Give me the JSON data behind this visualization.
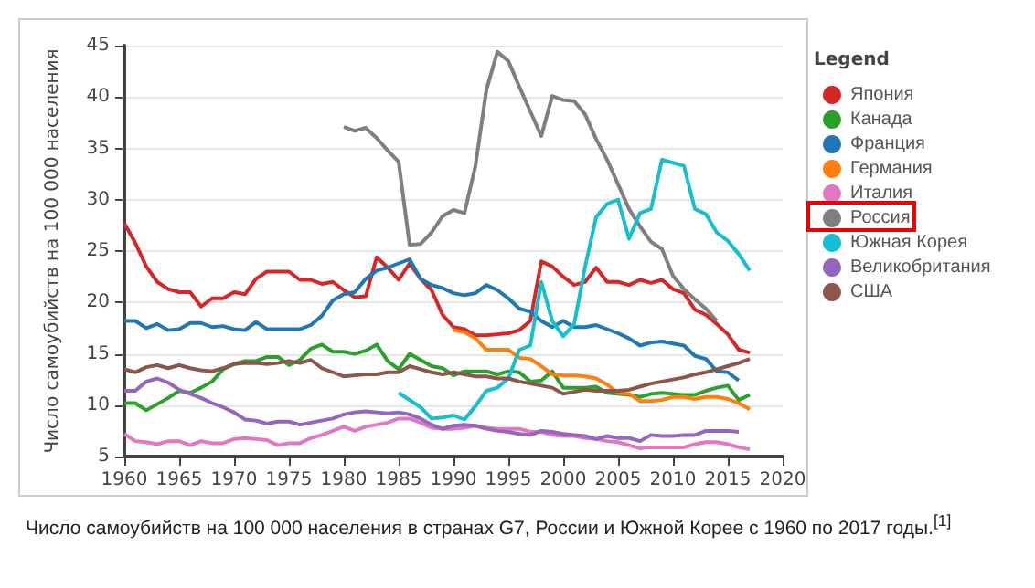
{
  "chart_data": {
    "type": "line",
    "ylabel": "Число самоубийств на 100 000 населения",
    "legend_title": "Legend",
    "legend": "right",
    "grid": "y",
    "marker": "none",
    "line_style": "solid",
    "xlim": [
      1960,
      2020
    ],
    "xticks": [
      1960,
      1965,
      1970,
      1975,
      1980,
      1985,
      1990,
      1995,
      2000,
      2005,
      2010,
      2015,
      2020
    ],
    "ylim": [
      5,
      45
    ],
    "yticks": [
      5,
      10,
      15,
      20,
      25,
      30,
      35,
      40,
      45
    ],
    "annotations": [
      "Число самоубийств на 100 000 населения в странах G7, России и Южной Корее с 1960 по 2017 годы.$^{[1]}$"
    ],
    "x": [
      1960,
      1961,
      1962,
      1963,
      1964,
      1965,
      1966,
      1967,
      1968,
      1969,
      1970,
      1971,
      1972,
      1973,
      1974,
      1975,
      1976,
      1977,
      1978,
      1979,
      1980,
      1981,
      1982,
      1983,
      1984,
      1985,
      1986,
      1987,
      1988,
      1989,
      1990,
      1991,
      1992,
      1993,
      1994,
      1995,
      1996,
      1997,
      1998,
      1999,
      2000,
      2001,
      2002,
      2003,
      2004,
      2005,
      2006,
      2007,
      2008,
      2009,
      2010,
      2011,
      2012,
      2013,
      2014,
      2015,
      2016,
      2017
    ],
    "series": [
      {
        "name": "Япония",
        "color": "#d62728",
        "values": [
          27.7,
          25.8,
          23.5,
          22.0,
          21.3,
          21.0,
          21.0,
          19.6,
          20.4,
          20.4,
          21.0,
          20.8,
          22.3,
          23.0,
          23.0,
          23.0,
          22.2,
          22.2,
          21.8,
          22.0,
          21.2,
          20.5,
          20.6,
          24.4,
          23.4,
          22.2,
          23.8,
          22.3,
          21.2,
          18.8,
          17.6,
          17.4,
          16.8,
          16.8,
          16.9,
          17.0,
          17.3,
          18.2,
          24.0,
          23.5,
          22.5,
          21.7,
          22.0,
          23.4,
          22.0,
          22.0,
          21.7,
          22.2,
          21.9,
          22.2,
          21.3,
          20.9,
          19.3,
          18.8,
          17.9,
          16.9,
          15.4,
          15.1
        ]
      },
      {
        "name": "Канада",
        "color": "#2ca02c",
        "values": [
          10.2,
          10.2,
          9.5,
          10.1,
          10.7,
          11.4,
          11.2,
          11.7,
          12.3,
          13.5,
          14.0,
          14.3,
          14.3,
          14.7,
          14.7,
          13.9,
          14.4,
          15.5,
          15.9,
          15.2,
          15.2,
          15.0,
          15.3,
          15.9,
          14.3,
          13.5,
          15.0,
          14.4,
          13.8,
          13.6,
          12.9,
          13.3,
          13.3,
          13.3,
          13.0,
          13.3,
          13.2,
          12.3,
          12.4,
          13.3,
          11.7,
          11.7,
          11.7,
          11.8,
          11.2,
          11.1,
          11.0,
          10.8,
          11.1,
          11.2,
          11.1,
          11.0,
          11.0,
          11.4,
          11.7,
          11.9,
          10.5,
          11.0
        ]
      },
      {
        "name": "Франция",
        "color": "#1f77b4",
        "values": [
          18.2,
          18.2,
          17.5,
          17.9,
          17.3,
          17.4,
          18.0,
          18.0,
          17.6,
          17.7,
          17.4,
          17.3,
          18.1,
          17.4,
          17.4,
          17.4,
          17.4,
          17.8,
          18.7,
          20.2,
          20.8,
          21.0,
          22.3,
          23.1,
          23.4,
          23.8,
          24.2,
          22.3,
          21.7,
          21.4,
          20.9,
          20.7,
          20.9,
          21.7,
          21.2,
          20.4,
          19.4,
          19.1,
          18.2,
          17.6,
          18.2,
          17.6,
          17.6,
          17.8,
          17.4,
          17.0,
          16.5,
          15.8,
          16.1,
          16.2,
          16.0,
          15.8,
          14.8,
          14.5,
          13.3,
          13.2,
          12.4,
          null
        ]
      },
      {
        "name": "Германия",
        "color": "#ff7f0e",
        "values": [
          null,
          null,
          null,
          null,
          null,
          null,
          null,
          null,
          null,
          null,
          null,
          null,
          null,
          null,
          null,
          null,
          null,
          null,
          null,
          null,
          null,
          null,
          null,
          null,
          null,
          null,
          null,
          null,
          null,
          null,
          17.3,
          17.1,
          16.5,
          15.4,
          15.4,
          15.4,
          14.6,
          14.5,
          13.8,
          13.0,
          12.9,
          12.9,
          12.8,
          12.6,
          12.0,
          11.2,
          11.1,
          10.4,
          10.4,
          10.5,
          10.8,
          10.8,
          10.6,
          10.8,
          10.8,
          10.6,
          10.2,
          9.6
        ]
      },
      {
        "name": "Италия",
        "color": "#e377c2",
        "values": [
          7.2,
          6.5,
          6.4,
          6.2,
          6.5,
          6.5,
          6.1,
          6.5,
          6.3,
          6.3,
          6.7,
          6.8,
          6.7,
          6.6,
          6.1,
          6.3,
          6.3,
          6.8,
          7.1,
          7.5,
          7.9,
          7.5,
          7.9,
          8.1,
          8.3,
          8.7,
          8.7,
          8.3,
          7.8,
          7.7,
          7.7,
          7.8,
          8.0,
          7.8,
          7.7,
          7.7,
          7.7,
          7.4,
          7.4,
          7.1,
          7.0,
          7.0,
          6.8,
          6.7,
          6.5,
          6.4,
          6.1,
          5.8,
          5.9,
          5.9,
          5.9,
          5.9,
          6.2,
          6.4,
          6.4,
          6.2,
          5.9,
          5.7
        ]
      },
      {
        "name": "Россия",
        "color": "#7f7f7f",
        "values": [
          null,
          null,
          null,
          null,
          null,
          null,
          null,
          null,
          null,
          null,
          null,
          null,
          null,
          null,
          null,
          null,
          null,
          null,
          null,
          null,
          37.1,
          36.7,
          37.0,
          36.0,
          34.8,
          33.7,
          25.6,
          25.7,
          26.8,
          28.4,
          29.0,
          28.7,
          33.3,
          40.7,
          44.4,
          43.5,
          41.0,
          38.6,
          36.2,
          40.1,
          39.7,
          39.6,
          38.3,
          35.9,
          33.9,
          31.5,
          29.1,
          27.4,
          25.9,
          25.2,
          22.6,
          21.3,
          20.3,
          19.4,
          18.2,
          null,
          null,
          null
        ]
      },
      {
        "name": "Южная Корея",
        "color": "#17becf",
        "values": [
          null,
          null,
          null,
          null,
          null,
          null,
          null,
          null,
          null,
          null,
          null,
          null,
          null,
          null,
          null,
          null,
          null,
          null,
          null,
          null,
          null,
          null,
          null,
          null,
          null,
          11.2,
          10.5,
          9.8,
          8.7,
          8.8,
          9.0,
          8.6,
          9.9,
          11.4,
          11.7,
          12.6,
          15.4,
          15.8,
          22.0,
          18.2,
          16.7,
          17.9,
          23.5,
          28.3,
          29.6,
          30.0,
          26.2,
          28.7,
          29.1,
          33.9,
          33.6,
          33.3,
          29.1,
          28.6,
          26.8,
          26.0,
          24.7,
          23.1
        ]
      },
      {
        "name": "Великобритания",
        "color": "#9467bd",
        "values": [
          11.4,
          11.4,
          12.3,
          12.6,
          12.2,
          11.5,
          11.1,
          10.7,
          10.2,
          9.8,
          9.3,
          8.6,
          8.5,
          8.2,
          8.4,
          8.4,
          8.1,
          8.3,
          8.5,
          8.7,
          9.1,
          9.3,
          9.4,
          9.3,
          9.2,
          9.3,
          9.1,
          8.7,
          8.1,
          7.7,
          8.0,
          8.1,
          8.0,
          7.7,
          7.5,
          7.4,
          7.2,
          7.1,
          7.5,
          7.4,
          7.2,
          7.1,
          7.0,
          6.7,
          7.0,
          6.8,
          6.8,
          6.5,
          7.1,
          7.0,
          7.0,
          7.1,
          7.1,
          7.5,
          7.5,
          7.5,
          7.4,
          null
        ]
      },
      {
        "name": "США",
        "color": "#8c564b",
        "values": [
          13.5,
          13.2,
          13.7,
          13.9,
          13.6,
          13.9,
          13.6,
          13.4,
          13.3,
          13.6,
          14.0,
          14.1,
          14.1,
          14.0,
          14.1,
          14.3,
          14.1,
          14.4,
          13.6,
          13.2,
          12.8,
          12.9,
          13.0,
          13.0,
          13.2,
          13.2,
          13.8,
          13.5,
          13.2,
          13.0,
          13.2,
          13.0,
          12.8,
          12.8,
          12.6,
          12.6,
          12.3,
          12.1,
          11.9,
          11.7,
          11.1,
          11.3,
          11.5,
          11.4,
          11.4,
          11.4,
          11.5,
          11.8,
          12.1,
          12.3,
          12.5,
          12.7,
          13.0,
          13.2,
          13.5,
          13.8,
          14.1,
          14.5
        ]
      }
    ]
  }
}
